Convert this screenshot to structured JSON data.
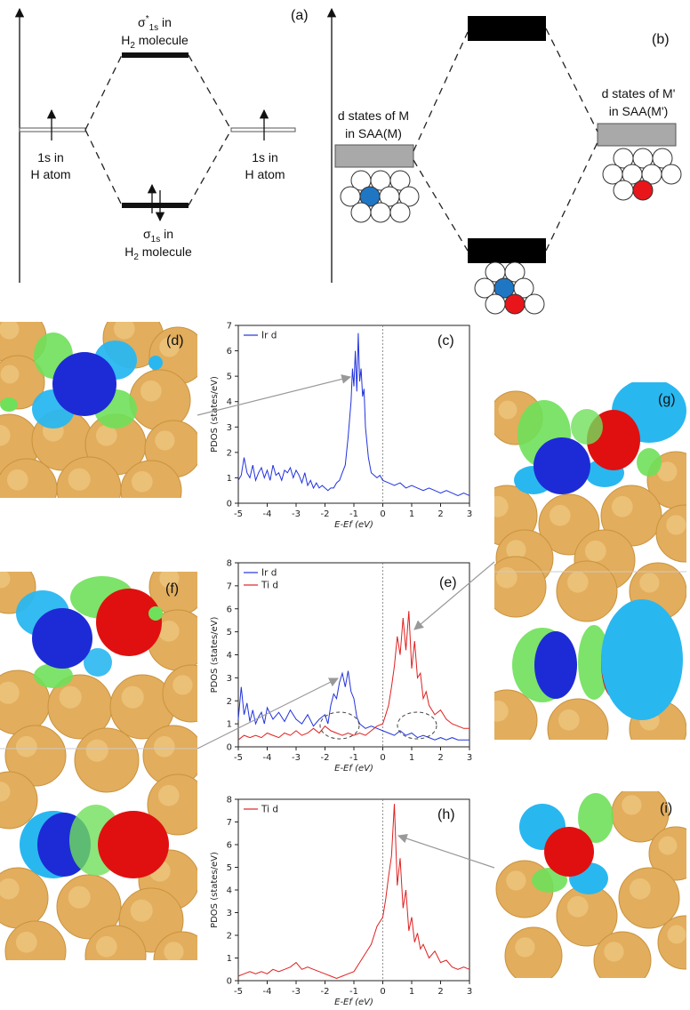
{
  "panel_a": {
    "tag": "(a)",
    "antibond_label_pre": "σ",
    "antibond_label_sup": "*",
    "antibond_label_sub": "1s",
    "antibond_label_post": " in",
    "antibond_label_line2": "H",
    "antibond_label_line2_sub": "2",
    "antibond_label_line2_post": " molecule",
    "bond_label_pre": "σ",
    "bond_label_sub": "1s",
    "bond_label_post": " in",
    "bond_label_line2": "H",
    "bond_label_line2_sub": "2",
    "bond_label_line2_post": " molecule",
    "left_label_1": "1s in",
    "left_label_2": "H atom",
    "right_label_1": "1s in",
    "right_label_2": "H atom"
  },
  "panel_b": {
    "tag": "(b)",
    "left_label_1": "d states of M",
    "left_label_2": "in SAA(M)",
    "right_label_1": "d states of M'",
    "right_label_2": "in SAA(M')",
    "color_M": "#1f77c4",
    "color_Mprime": "#e8161b"
  },
  "panel_tags": {
    "c": "(c)",
    "d": "(d)",
    "e": "(e)",
    "f": "(f)",
    "g": "(g)",
    "h": "(h)",
    "i": "(i)"
  },
  "colors": {
    "gold": "#e2ad5c",
    "ir": "#1d2bd6",
    "ti": "#e01010",
    "iso_green": "#6fe05a",
    "iso_cyan": "#29b7f0",
    "ir_line": "#2233dd",
    "ti_line": "#e02020"
  },
  "chart_data": [
    {
      "id": "c",
      "type": "line",
      "ylabel": "PDOS (states/eV)",
      "xlabel": "E-Ef (eV)",
      "xlim": [
        -5,
        3
      ],
      "ylim": [
        0,
        7
      ],
      "xticks": [
        -5,
        -4,
        -3,
        -2,
        -1,
        0,
        1,
        2,
        3
      ],
      "yticks": [
        0,
        1,
        2,
        3,
        4,
        5,
        6,
        7
      ],
      "fermi_line": 0,
      "legend_position": "top-left",
      "series": [
        {
          "name": "Ir d",
          "color": "#2233dd",
          "x": [
            -5.0,
            -4.9,
            -4.8,
            -4.7,
            -4.6,
            -4.5,
            -4.4,
            -4.3,
            -4.2,
            -4.1,
            -4.0,
            -3.9,
            -3.8,
            -3.7,
            -3.6,
            -3.5,
            -3.4,
            -3.3,
            -3.2,
            -3.1,
            -3.0,
            -2.9,
            -2.8,
            -2.7,
            -2.6,
            -2.5,
            -2.4,
            -2.3,
            -2.2,
            -2.1,
            -2.0,
            -1.9,
            -1.8,
            -1.7,
            -1.6,
            -1.5,
            -1.4,
            -1.3,
            -1.2,
            -1.1,
            -1.05,
            -1.0,
            -0.95,
            -0.9,
            -0.85,
            -0.8,
            -0.75,
            -0.7,
            -0.65,
            -0.6,
            -0.5,
            -0.4,
            -0.3,
            -0.2,
            -0.1,
            0.0,
            0.2,
            0.4,
            0.6,
            0.8,
            1.0,
            1.2,
            1.4,
            1.6,
            1.8,
            2.0,
            2.2,
            2.4,
            2.6,
            2.8,
            3.0
          ],
          "y": [
            0.9,
            1.1,
            1.8,
            1.2,
            1.0,
            1.5,
            0.9,
            1.2,
            1.4,
            1.0,
            1.3,
            0.9,
            1.5,
            1.1,
            1.2,
            0.9,
            1.3,
            1.2,
            1.4,
            1.0,
            1.3,
            1.1,
            0.8,
            1.2,
            0.7,
            0.9,
            0.6,
            0.8,
            0.6,
            0.7,
            0.6,
            0.5,
            0.6,
            0.6,
            0.8,
            0.9,
            1.2,
            1.5,
            2.6,
            4.0,
            5.3,
            4.6,
            6.0,
            4.4,
            6.7,
            4.8,
            5.3,
            4.2,
            4.5,
            3.0,
            1.8,
            1.2,
            1.1,
            1.0,
            1.1,
            0.9,
            0.8,
            0.7,
            0.8,
            0.6,
            0.7,
            0.6,
            0.5,
            0.6,
            0.5,
            0.4,
            0.5,
            0.4,
            0.3,
            0.4,
            0.3
          ]
        }
      ]
    },
    {
      "id": "e",
      "type": "line",
      "ylabel": "PDOS (states/eV)",
      "xlabel": "E-Ef (eV)",
      "xlim": [
        -5,
        3
      ],
      "ylim": [
        0,
        8
      ],
      "xticks": [
        -5,
        -4,
        -3,
        -2,
        -1,
        0,
        1,
        2,
        3
      ],
      "yticks": [
        0,
        1,
        2,
        3,
        4,
        5,
        6,
        7,
        8
      ],
      "fermi_line": 0,
      "legend_position": "top-left",
      "series": [
        {
          "name": "Ir d",
          "color": "#2233dd",
          "x": [
            -5.0,
            -4.9,
            -4.8,
            -4.7,
            -4.6,
            -4.5,
            -4.4,
            -4.3,
            -4.2,
            -4.1,
            -4.0,
            -3.8,
            -3.6,
            -3.4,
            -3.2,
            -3.0,
            -2.8,
            -2.6,
            -2.4,
            -2.2,
            -2.0,
            -1.9,
            -1.8,
            -1.7,
            -1.6,
            -1.5,
            -1.4,
            -1.3,
            -1.2,
            -1.1,
            -1.0,
            -0.9,
            -0.8,
            -0.6,
            -0.4,
            -0.2,
            0.0,
            0.2,
            0.4,
            0.6,
            0.8,
            1.0,
            1.2,
            1.4,
            1.6,
            1.8,
            2.0,
            2.2,
            2.4,
            2.6,
            2.8,
            3.0
          ],
          "y": [
            1.2,
            2.6,
            1.4,
            1.9,
            1.1,
            1.6,
            1.0,
            1.3,
            1.5,
            1.0,
            1.7,
            1.2,
            1.5,
            1.1,
            1.6,
            1.2,
            1.0,
            1.4,
            0.9,
            1.2,
            1.4,
            1.0,
            1.8,
            2.3,
            2.1,
            2.8,
            3.2,
            2.6,
            3.3,
            2.4,
            2.1,
            1.3,
            1.0,
            0.8,
            0.9,
            0.8,
            0.7,
            0.6,
            0.5,
            0.7,
            0.5,
            0.6,
            0.4,
            0.5,
            0.4,
            0.3,
            0.4,
            0.3,
            0.4,
            0.3,
            0.3,
            0.3
          ]
        },
        {
          "name": "Ti d",
          "color": "#e02020",
          "x": [
            -5.0,
            -4.8,
            -4.6,
            -4.4,
            -4.2,
            -4.0,
            -3.8,
            -3.6,
            -3.4,
            -3.2,
            -3.0,
            -2.8,
            -2.6,
            -2.4,
            -2.2,
            -2.0,
            -1.8,
            -1.6,
            -1.4,
            -1.2,
            -1.0,
            -0.8,
            -0.6,
            -0.4,
            -0.2,
            0.0,
            0.1,
            0.2,
            0.3,
            0.4,
            0.5,
            0.6,
            0.7,
            0.8,
            0.9,
            1.0,
            1.1,
            1.2,
            1.3,
            1.4,
            1.5,
            1.6,
            1.8,
            2.0,
            2.2,
            2.4,
            2.6,
            2.8,
            3.0
          ],
          "y": [
            0.3,
            0.5,
            0.4,
            0.5,
            0.4,
            0.6,
            0.5,
            0.4,
            0.6,
            0.5,
            0.7,
            0.5,
            0.6,
            0.8,
            0.6,
            0.9,
            0.7,
            0.6,
            0.5,
            0.6,
            0.5,
            0.6,
            0.5,
            0.7,
            0.9,
            1.0,
            1.4,
            1.8,
            2.6,
            3.5,
            4.8,
            4.0,
            5.6,
            4.2,
            5.9,
            3.4,
            4.6,
            3.0,
            3.2,
            2.1,
            2.4,
            1.8,
            1.4,
            1.6,
            1.2,
            1.0,
            0.9,
            0.8,
            0.8
          ]
        }
      ]
    },
    {
      "id": "h",
      "type": "line",
      "ylabel": "PDOS (states/eV)",
      "xlabel": "E-Ef (eV)",
      "xlim": [
        -5,
        3
      ],
      "ylim": [
        0,
        8
      ],
      "xticks": [
        -5,
        -4,
        -3,
        -2,
        -1,
        0,
        1,
        2,
        3
      ],
      "yticks": [
        0,
        1,
        2,
        3,
        4,
        5,
        6,
        7,
        8
      ],
      "fermi_line": 0,
      "legend_position": "top-left",
      "series": [
        {
          "name": "Ti d",
          "color": "#e02020",
          "x": [
            -5.0,
            -4.8,
            -4.6,
            -4.4,
            -4.2,
            -4.0,
            -3.8,
            -3.6,
            -3.4,
            -3.2,
            -3.0,
            -2.8,
            -2.6,
            -2.4,
            -2.2,
            -2.0,
            -1.8,
            -1.6,
            -1.4,
            -1.2,
            -1.0,
            -0.8,
            -0.6,
            -0.4,
            -0.2,
            0.0,
            0.1,
            0.2,
            0.3,
            0.4,
            0.5,
            0.6,
            0.7,
            0.8,
            0.9,
            1.0,
            1.1,
            1.2,
            1.3,
            1.4,
            1.6,
            1.8,
            2.0,
            2.2,
            2.4,
            2.6,
            2.8,
            3.0
          ],
          "y": [
            0.2,
            0.3,
            0.4,
            0.3,
            0.4,
            0.3,
            0.5,
            0.4,
            0.5,
            0.6,
            0.8,
            0.5,
            0.6,
            0.5,
            0.4,
            0.3,
            0.2,
            0.1,
            0.2,
            0.3,
            0.4,
            0.8,
            1.2,
            1.6,
            2.4,
            2.8,
            3.6,
            4.6,
            5.5,
            7.8,
            4.2,
            5.4,
            3.2,
            4.0,
            2.2,
            2.8,
            1.7,
            2.1,
            1.4,
            1.6,
            1.0,
            1.3,
            0.8,
            0.9,
            0.6,
            0.5,
            0.6,
            0.5
          ]
        }
      ]
    }
  ]
}
